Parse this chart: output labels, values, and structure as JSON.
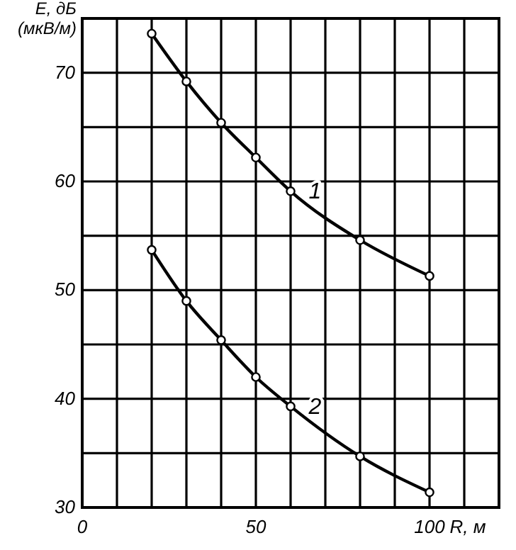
{
  "chart_data": {
    "type": "line",
    "xlabel": "R, м",
    "ylabel": "E, дБ\n(мкВ/м)",
    "xlim": [
      0,
      120
    ],
    "ylim": [
      30,
      75
    ],
    "xticks": [
      0,
      {
        "value": 10,
        "label": null
      },
      {
        "value": 20,
        "label": null
      },
      {
        "value": 30,
        "label": null
      },
      {
        "value": 40,
        "label": null
      },
      50,
      {
        "value": 60,
        "label": null
      },
      {
        "value": 70,
        "label": null
      },
      {
        "value": 80,
        "label": null
      },
      {
        "value": 90,
        "label": null
      },
      100,
      {
        "value": 110,
        "label": null
      },
      {
        "value": 120,
        "label": null
      }
    ],
    "yticks": [
      30,
      {
        "value": 35,
        "label": null
      },
      40,
      {
        "value": 45,
        "label": null
      },
      50,
      {
        "value": 55,
        "label": null
      },
      60,
      {
        "value": 65,
        "label": null
      },
      70
    ],
    "grid": true,
    "marker": "circle",
    "line_style": "solid",
    "x": [
      20,
      30,
      40,
      50,
      60,
      80,
      100
    ],
    "series": [
      {
        "name": "1",
        "color": "#000000",
        "values": [
          73.6,
          69.2,
          65.4,
          62.2,
          59.1,
          54.6,
          51.3
        ]
      },
      {
        "name": "2",
        "color": "#000000",
        "values": [
          53.7,
          49.0,
          45.4,
          42.0,
          39.3,
          34.7,
          31.4
        ]
      }
    ]
  }
}
